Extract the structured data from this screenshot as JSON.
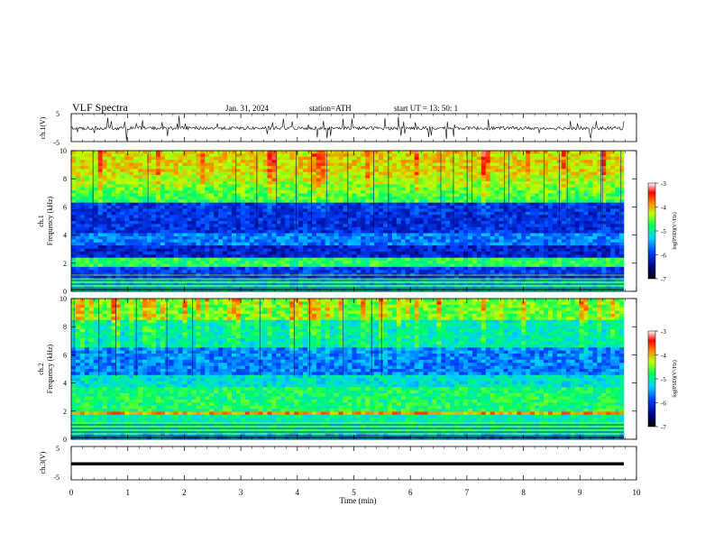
{
  "header": {
    "title": "VLF  Spectra",
    "date": "Jan. 31, 2024",
    "station": "station=ATH",
    "start": "start  UT  =    13: 50: 1"
  },
  "chart_data": [
    {
      "type": "line",
      "ylabel": "ch.1(V)",
      "ylim": [
        -5,
        5
      ],
      "yticks": [
        "5",
        "-5"
      ],
      "xlim": [
        0,
        10
      ],
      "series_color": "#000000",
      "description_values": "noisy waveform around -0.2 V with sporadic spikes up to about 4 V"
    },
    {
      "type": "heatmap",
      "ylabel": "ch.1\nFrequency (kHz)",
      "ylabel_lines": [
        "ch.1",
        "Frequency (kHz)"
      ],
      "ylim": [
        0,
        10
      ],
      "yticks": [
        "0",
        "2",
        "4",
        "6",
        "8",
        "10"
      ],
      "xlim": [
        0,
        10
      ],
      "colorbar": {
        "label": "log(PSD)(V²/Hz)",
        "ticks": [
          "-3",
          "-4",
          "-5",
          "-6",
          "-7"
        ],
        "range": [
          -7,
          -3
        ]
      }
    },
    {
      "type": "heatmap",
      "ylabel_lines": [
        "ch.2",
        "Frequency (kHz)"
      ],
      "ylim": [
        0,
        10
      ],
      "yticks": [
        "0",
        "2",
        "4",
        "6",
        "8",
        "10"
      ],
      "xlim": [
        0,
        10
      ],
      "colorbar": {
        "label": "log(PSD)(V²/Hz)",
        "ticks": [
          "-3",
          "-4",
          "-5",
          "-6",
          "-7"
        ],
        "range": [
          -7,
          -3
        ]
      }
    },
    {
      "type": "line",
      "ylabel": "ch.3(V)",
      "ylim": [
        -5,
        5
      ],
      "yticks": [
        "5",
        "-5"
      ],
      "xlim": [
        0,
        10
      ],
      "series_color": "#000000",
      "constant_value": -1.0
    }
  ],
  "xaxis": {
    "label": "Time  (min)",
    "ticks": [
      "0",
      "1",
      "2",
      "3",
      "4",
      "5",
      "6",
      "7",
      "8",
      "9",
      "10"
    ]
  }
}
